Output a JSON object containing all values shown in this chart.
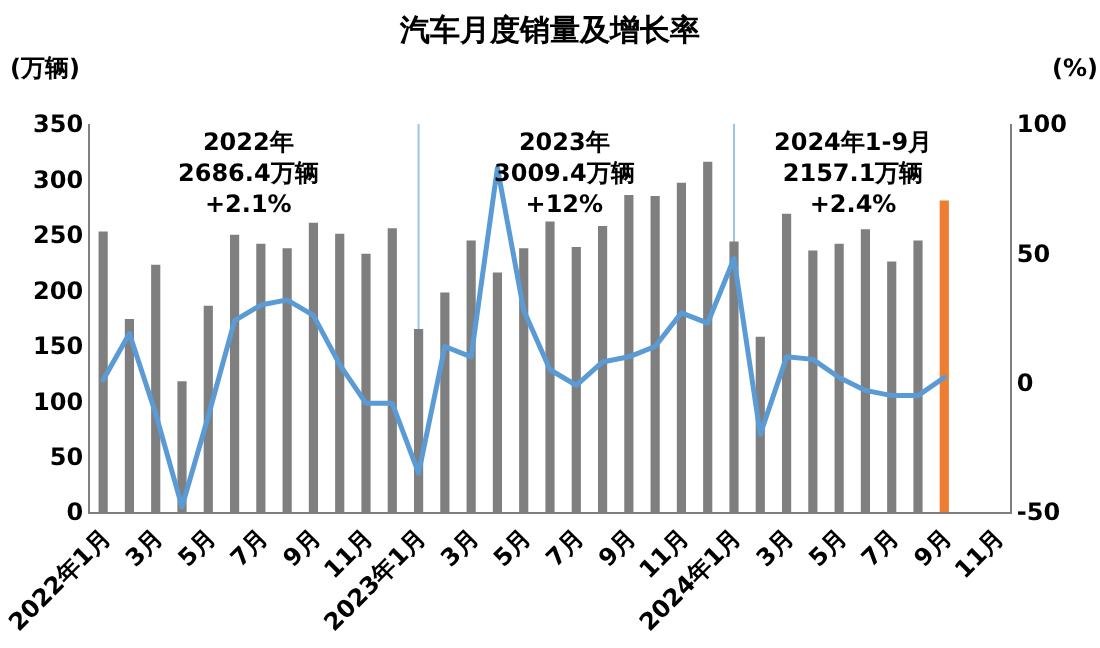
{
  "chart_data": {
    "type": "bar",
    "title": "汽车月度销量及增长率",
    "ylabel": "(万辆)",
    "y2label": "(%)",
    "categories": [
      "2022年1月",
      null,
      "3月",
      null,
      "5月",
      null,
      "7月",
      null,
      "9月",
      null,
      "11月",
      null,
      "2023年1月",
      null,
      "3月",
      null,
      "5月",
      null,
      "7月",
      null,
      "9月",
      null,
      "11月",
      null,
      "2024年1月",
      null,
      "3月",
      null,
      "5月",
      null,
      "7月",
      null,
      "9月",
      null,
      "11月"
    ],
    "series": [
      {
        "colors": [
          "#7f7f7f",
          "#7f7f7f",
          "#7f7f7f",
          "#7f7f7f",
          "#7f7f7f",
          "#7f7f7f",
          "#7f7f7f",
          "#7f7f7f",
          "#7f7f7f",
          "#7f7f7f",
          "#7f7f7f",
          "#7f7f7f",
          "#7f7f7f",
          "#7f7f7f",
          "#7f7f7f",
          "#7f7f7f",
          "#7f7f7f",
          "#7f7f7f",
          "#7f7f7f",
          "#7f7f7f",
          "#7f7f7f",
          "#7f7f7f",
          "#7f7f7f",
          "#7f7f7f",
          "#7f7f7f",
          "#7f7f7f",
          "#7f7f7f",
          "#7f7f7f",
          "#7f7f7f",
          "#7f7f7f",
          "#7f7f7f",
          "#7f7f7f",
          "#ed7d31",
          null,
          null
        ],
        "values": [
          253,
          174,
          223,
          118,
          186,
          250,
          242,
          238,
          261,
          251,
          233,
          256,
          165,
          198,
          245,
          216,
          238,
          262,
          239,
          258,
          286,
          285,
          297,
          316,
          244,
          158,
          269,
          236,
          242,
          255,
          226,
          245,
          281,
          null,
          null
        ]
      },
      {
        "type": "line",
        "axis": "y2",
        "color": "#5b9bd5",
        "values": [
          1,
          19,
          -12,
          -48,
          -13,
          24,
          30,
          32,
          26,
          7,
          -8,
          -8,
          -35,
          14,
          10,
          83,
          28,
          5,
          -1,
          8,
          10,
          14,
          27,
          23,
          48,
          -20,
          10,
          9,
          2,
          -3,
          -5,
          -5,
          2,
          null,
          null
        ]
      }
    ],
    "ylim": [
      0,
      350
    ],
    "yticks": [
      0,
      50,
      100,
      150,
      200,
      250,
      300,
      350
    ],
    "y2lim": [
      -50,
      100
    ],
    "y2ticks": [
      -50,
      0,
      50,
      100
    ],
    "ref_lines": [
      {
        "axis": "x",
        "value": "2023年1月",
        "color": "#9dc3e6"
      },
      {
        "axis": "x",
        "value": "2024年1月",
        "color": "#9dc3e6"
      }
    ],
    "annotations": [
      "2022年\n2686.4万辆\n+2.1%",
      "2023年\n3009.4万辆\n+12%",
      "2024年1-9月\n2157.1万辆\n+2.4%"
    ],
    "grid": false,
    "marker": "none",
    "line_style": "solid"
  }
}
